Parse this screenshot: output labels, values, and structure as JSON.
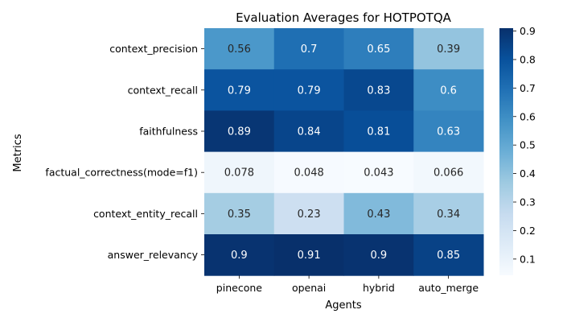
{
  "chart_data": {
    "type": "heatmap",
    "title": "Evaluation Averages for HOTPOTQA",
    "xlabel": "Agents",
    "ylabel": "Metrics",
    "columns": [
      "pinecone",
      "openai",
      "hybrid",
      "auto_merge"
    ],
    "rows": [
      "context_precision",
      "context_recall",
      "faithfulness",
      "factual_correctness(mode=f1)",
      "context_entity_recall",
      "answer_relevancy"
    ],
    "values": [
      [
        0.56,
        0.7,
        0.65,
        0.39
      ],
      [
        0.79,
        0.79,
        0.83,
        0.6
      ],
      [
        0.89,
        0.84,
        0.81,
        0.63
      ],
      [
        0.078,
        0.048,
        0.043,
        0.066
      ],
      [
        0.35,
        0.23,
        0.43,
        0.34
      ],
      [
        0.9,
        0.91,
        0.9,
        0.85
      ]
    ],
    "cell_labels": [
      [
        "0.56",
        "0.7",
        "0.65",
        "0.39"
      ],
      [
        "0.79",
        "0.79",
        "0.83",
        "0.6"
      ],
      [
        "0.89",
        "0.84",
        "0.81",
        "0.63"
      ],
      [
        "0.078",
        "0.048",
        "0.043",
        "0.066"
      ],
      [
        "0.35",
        "0.23",
        "0.43",
        "0.34"
      ],
      [
        "0.9",
        "0.91",
        "0.9",
        "0.85"
      ]
    ],
    "colormap": "Blues",
    "color_range": [
      0.043,
      0.91
    ],
    "colorbar_ticks": [
      "0.1",
      "0.2",
      "0.3",
      "0.4",
      "0.5",
      "0.6",
      "0.7",
      "0.8",
      "0.9"
    ],
    "colorbar_position": "right",
    "grid": false
  }
}
